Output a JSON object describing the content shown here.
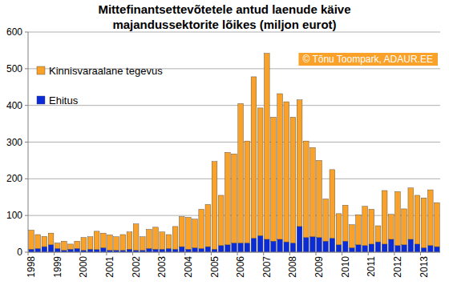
{
  "chart_data": {
    "type": "bar",
    "title": "Mittefinantsettevõtetele antud laenude käive majandussektorite lõikes (miljon eurot)",
    "annotations": [
      "© Tõnu Toompark, ADAUR.EE"
    ],
    "stacked": true,
    "grid": true,
    "legend": "top-left",
    "categories": [
      "1998",
      null,
      null,
      null,
      "1999",
      null,
      null,
      null,
      "2000",
      null,
      null,
      null,
      "2001",
      null,
      null,
      null,
      "2002",
      null,
      null,
      null,
      "2003",
      null,
      null,
      null,
      "2004",
      null,
      null,
      null,
      "2005",
      null,
      null,
      null,
      "2006",
      null,
      null,
      null,
      "2007",
      null,
      null,
      null,
      "2008",
      null,
      null,
      null,
      "2009",
      null,
      null,
      null,
      "2010",
      null,
      null,
      null,
      "2011",
      null,
      null,
      null,
      "2012",
      null,
      null,
      null,
      "2013",
      null,
      null
    ],
    "series": [
      {
        "name": "Kinnisvaraalane tegevus",
        "color": "#f9a128",
        "values": [
          52,
          38,
          28,
          32,
          15,
          25,
          14,
          20,
          35,
          34,
          50,
          40,
          42,
          37,
          43,
          47,
          72,
          37,
          52,
          60,
          47,
          38,
          62,
          82,
          87,
          78,
          107,
          115,
          239,
          137,
          252,
          243,
          380,
          278,
          440,
          348,
          507,
          338,
          397,
          382,
          343,
          345,
          263,
          243,
          210,
          115,
          187,
          85,
          98,
          63,
          82,
          107,
          95,
          44,
          146,
          68,
          147,
          98,
          140,
          133,
          136,
          152,
          120
        ]
      },
      {
        "name": "Ehitus",
        "color": "#0b2bd6",
        "values": [
          8,
          10,
          15,
          20,
          10,
          5,
          8,
          10,
          5,
          8,
          7,
          12,
          5,
          5,
          5,
          8,
          5,
          5,
          10,
          8,
          8,
          10,
          8,
          15,
          8,
          12,
          10,
          15,
          8,
          18,
          20,
          25,
          25,
          25,
          38,
          45,
          35,
          30,
          35,
          28,
          25,
          70,
          40,
          42,
          40,
          30,
          38,
          20,
          30,
          12,
          20,
          18,
          22,
          28,
          22,
          35,
          18,
          20,
          35,
          22,
          12,
          18,
          15
        ]
      }
    ],
    "ylim": [
      0,
      600
    ],
    "yticks": [
      0,
      100,
      200,
      300,
      400,
      500,
      600
    ]
  }
}
